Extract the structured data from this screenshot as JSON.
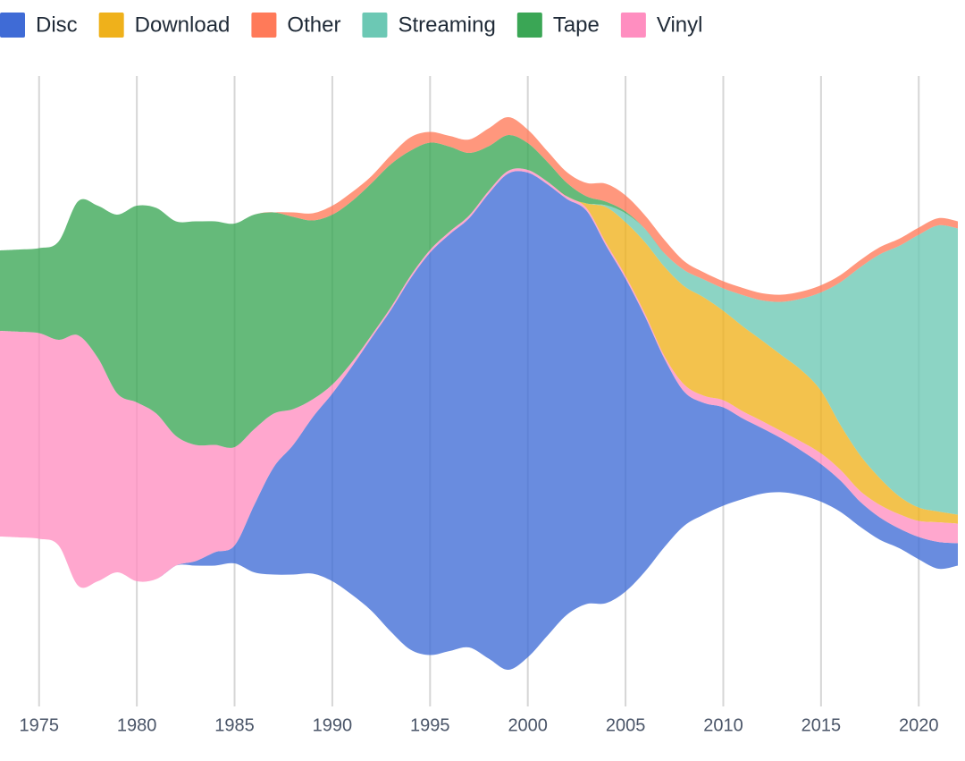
{
  "chart_data": {
    "type": "streamgraph",
    "x": [
      1973,
      1974,
      1975,
      1976,
      1977,
      1978,
      1979,
      1980,
      1981,
      1982,
      1983,
      1984,
      1985,
      1986,
      1987,
      1988,
      1989,
      1990,
      1991,
      1992,
      1993,
      1994,
      1995,
      1996,
      1997,
      1998,
      1999,
      2000,
      2001,
      2002,
      2003,
      2004,
      2005,
      2006,
      2007,
      2008,
      2009,
      2010,
      2011,
      2012,
      2013,
      2014,
      2015,
      2016,
      2017,
      2018,
      2019,
      2020,
      2021,
      2022
    ],
    "xlim": [
      1973,
      2022
    ],
    "xticks": [
      1975,
      1980,
      1985,
      1990,
      1995,
      2000,
      2005,
      2010,
      2015,
      2020
    ],
    "grid": true,
    "legend": "top",
    "series": [
      {
        "name": "Disc",
        "color": "#3f6bd6",
        "values": [
          0,
          0,
          0,
          0,
          0,
          0,
          0,
          0,
          0,
          0,
          5,
          15,
          20,
          75,
          120,
          145,
          175,
          210,
          255,
          305,
          360,
          415,
          450,
          466,
          480,
          520,
          555,
          542,
          505,
          465,
          440,
          400,
          350,
          285,
          210,
          150,
          125,
          110,
          90,
          73,
          60,
          50,
          42,
          35,
          28,
          25,
          22,
          25,
          30,
          25
        ]
      },
      {
        "name": "Download",
        "color": "#efb11b",
        "values": [
          0,
          0,
          0,
          0,
          0,
          0,
          0,
          0,
          0,
          0,
          0,
          0,
          0,
          0,
          0,
          0,
          0,
          0,
          0,
          0,
          0,
          0,
          0,
          0,
          0,
          0,
          0,
          0,
          0,
          0,
          5,
          40,
          60,
          80,
          100,
          110,
          110,
          100,
          95,
          90,
          85,
          80,
          70,
          50,
          40,
          30,
          20,
          15,
          12,
          10
        ]
      },
      {
        "name": "Other",
        "color": "#ff7a59",
        "values": [
          0,
          0,
          0,
          0,
          0,
          0,
          0,
          0,
          0,
          0,
          0,
          0,
          0,
          0,
          0,
          5,
          8,
          10,
          10,
          8,
          10,
          15,
          12,
          12,
          15,
          20,
          20,
          15,
          12,
          12,
          15,
          20,
          18,
          15,
          15,
          10,
          8,
          8,
          8,
          8,
          8,
          8,
          8,
          8,
          8,
          8,
          8,
          8,
          8,
          8
        ]
      },
      {
        "name": "Streaming",
        "color": "#6cc8b4",
        "values": [
          0,
          0,
          0,
          0,
          0,
          0,
          0,
          0,
          0,
          0,
          0,
          0,
          0,
          0,
          0,
          0,
          0,
          0,
          0,
          0,
          0,
          0,
          0,
          0,
          0,
          0,
          0,
          0,
          0,
          0,
          0,
          2,
          10,
          15,
          15,
          18,
          20,
          25,
          35,
          45,
          60,
          80,
          110,
          160,
          210,
          250,
          280,
          305,
          320,
          320
        ]
      },
      {
        "name": "Tape",
        "color": "#3aa655",
        "values": [
          90,
          92,
          95,
          110,
          150,
          170,
          200,
          220,
          230,
          240,
          250,
          250,
          250,
          240,
          225,
          215,
          200,
          190,
          180,
          170,
          160,
          140,
          120,
          95,
          70,
          50,
          40,
          30,
          22,
          15,
          8,
          4,
          2,
          0,
          0,
          0,
          0,
          0,
          0,
          0,
          0,
          0,
          0,
          0,
          0,
          0,
          0,
          0,
          0,
          0
        ]
      },
      {
        "name": "Vinyl",
        "color": "#ff8ec0",
        "values": [
          230,
          230,
          230,
          230,
          280,
          250,
          200,
          200,
          185,
          145,
          130,
          120,
          110,
          85,
          60,
          40,
          20,
          10,
          5,
          3,
          3,
          3,
          3,
          3,
          3,
          3,
          3,
          3,
          3,
          3,
          3,
          3,
          3,
          3,
          3,
          8,
          8,
          8,
          8,
          8,
          8,
          10,
          12,
          12,
          12,
          14,
          16,
          18,
          22,
          22
        ]
      }
    ]
  }
}
